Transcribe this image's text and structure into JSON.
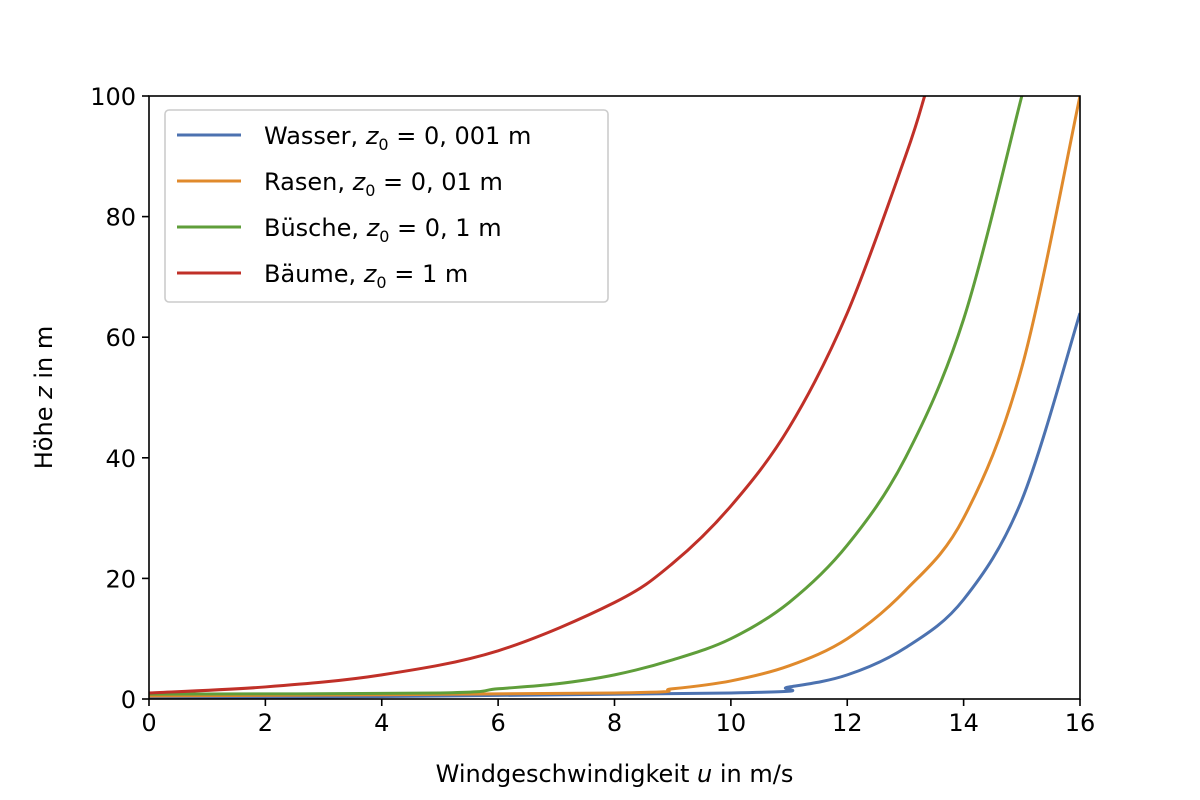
{
  "chart_data": {
    "type": "line",
    "xlabel": {
      "before": "Windgeschwindigkeit ",
      "var": "u",
      "after": " in m/s"
    },
    "ylabel": {
      "before": "Höhe ",
      "var": "z",
      "after": " in m"
    },
    "xlim": [
      0,
      16
    ],
    "ylim": [
      0,
      100
    ],
    "xticks": [
      0,
      2,
      4,
      6,
      8,
      10,
      12,
      14,
      16
    ],
    "yticks": [
      0,
      20,
      40,
      60,
      80,
      100
    ],
    "grid": false,
    "legend_position": "top-left",
    "series": [
      {
        "name": {
          "prefix": "Wasser, ",
          "var": "z",
          "sub": "0",
          "rest": " = 0, 001 m"
        },
        "color": "#4c72b0",
        "z0": 0.001,
        "x": [
          0,
          10,
          11,
          12,
          13,
          14,
          15,
          16
        ],
        "y": [
          0.1,
          1.0,
          2.0,
          4.0,
          8.5,
          16.5,
          33.0,
          64.0
        ]
      },
      {
        "name": {
          "prefix": "Rasen, ",
          "var": "z",
          "sub": "0",
          "rest": " = 0, 01 m"
        },
        "color": "#e08a2c",
        "z0": 0.01,
        "x": [
          0,
          8,
          9,
          10,
          11,
          12,
          13,
          14,
          15,
          16
        ],
        "y": [
          0.5,
          1.0,
          1.7,
          3.0,
          5.5,
          10.0,
          18.0,
          30.0,
          55.0,
          100.0
        ]
      },
      {
        "name": {
          "prefix": "Büsche, ",
          "var": "z",
          "sub": "0",
          "rest": " = 0, 1 m"
        },
        "color": "#5f9e3a",
        "z0": 0.1,
        "x": [
          0,
          5,
          6,
          7,
          8,
          9,
          10,
          11,
          12,
          13,
          14,
          15
        ],
        "y": [
          0.8,
          1.0,
          1.7,
          2.5,
          4.0,
          6.5,
          10.0,
          16.0,
          25.5,
          40.0,
          63.0,
          100.0
        ]
      },
      {
        "name": {
          "prefix": "Bäume, ",
          "var": "z",
          "sub": "0",
          "rest": " = 1 m"
        },
        "color": "#c03028",
        "z0": 1,
        "x": [
          0,
          2,
          4,
          6,
          8,
          9,
          10,
          11,
          12,
          13,
          13.33
        ],
        "y": [
          1.0,
          2.0,
          4.0,
          8.0,
          16.0,
          22.5,
          32.0,
          45.0,
          64.0,
          90.0,
          100.0
        ]
      }
    ]
  },
  "colors": {
    "axes": "#000000",
    "legend_border": "#cccccc",
    "background": "#ffffff"
  }
}
